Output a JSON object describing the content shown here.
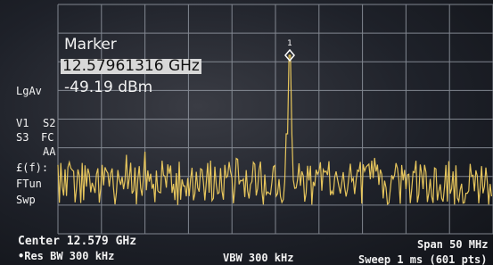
{
  "marker": {
    "number": "1",
    "title": "Marker",
    "frequency": "12.57961316 GHz",
    "amplitude": "-49.19 dBm"
  },
  "side_labels": [
    "LgAv",
    "V1",
    "S2",
    "S3",
    "FC",
    "AA",
    "£(f):",
    "FTun",
    "Swp"
  ],
  "footer": {
    "center": "Center 12.579 GHz",
    "res_bw": "•Res BW 300 kHz",
    "vbw": "VBW 300 kHz",
    "span": "Span 50 MHz",
    "sweep": "Sweep 1 ms (601 pts)"
  }
}
